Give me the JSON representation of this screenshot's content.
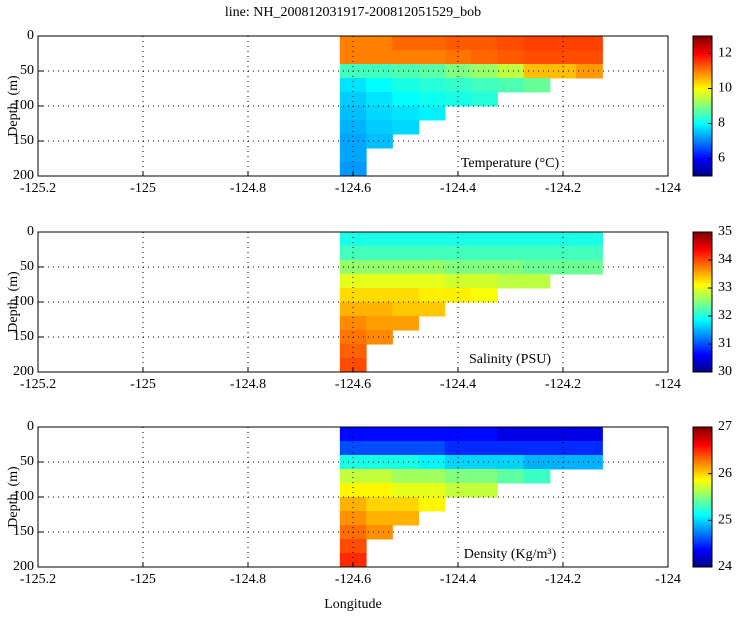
{
  "chart_data": [
    {
      "type": "heatmap",
      "title": "line: NH_200812031917-200812051529_bob",
      "ylabel": "Depth, (m)",
      "label": "Temperature (°C)",
      "x": [
        -124.6,
        -124.55,
        -124.5,
        -124.45,
        -124.4,
        -124.35,
        -124.3,
        -124.25,
        -124.2,
        -124.15
      ],
      "y": [
        10,
        30,
        50,
        70,
        90,
        110,
        130,
        150,
        170,
        190
      ],
      "values": [
        [
          11,
          11,
          11.2,
          11.2,
          11.3,
          11.3,
          11.4,
          11.5,
          11.5,
          11.5
        ],
        [
          11,
          11,
          11,
          11,
          11.1,
          11.2,
          11.3,
          11.4,
          11.4,
          11.4
        ],
        [
          8.5,
          8.5,
          8.6,
          8.7,
          9,
          9.2,
          9.5,
          10.5,
          10.5,
          10.8
        ],
        [
          7.8,
          8,
          8.2,
          8.3,
          8.4,
          8.5,
          8.6,
          8.8,
          null,
          null
        ],
        [
          7.6,
          7.8,
          8,
          8.1,
          8.2,
          8.3,
          null,
          null,
          null,
          null
        ],
        [
          7.5,
          7.7,
          7.8,
          7.9,
          null,
          null,
          null,
          null,
          null,
          null
        ],
        [
          7.4,
          7.6,
          7.7,
          null,
          null,
          null,
          null,
          null,
          null,
          null
        ],
        [
          7.3,
          7.5,
          null,
          null,
          null,
          null,
          null,
          null,
          null,
          null
        ],
        [
          7.3,
          null,
          null,
          null,
          null,
          null,
          null,
          null,
          null,
          null
        ],
        [
          7.2,
          null,
          null,
          null,
          null,
          null,
          null,
          null,
          null,
          null
        ]
      ],
      "xlim": [
        -125.2,
        -124
      ],
      "xticks": [
        -125.2,
        -125,
        -124.8,
        -124.6,
        -124.4,
        -124.2,
        -124
      ],
      "ylim": [
        0,
        200
      ],
      "yticks": [
        0,
        50,
        100,
        150,
        200
      ],
      "y_inverted": true,
      "grid": true,
      "colormap": "jet",
      "zlim": [
        5,
        13
      ],
      "zticks": [
        6,
        8,
        10,
        12
      ]
    },
    {
      "type": "heatmap",
      "ylabel": "Depth, (m)",
      "label": "Salinity (PSU)",
      "x": [
        -124.6,
        -124.55,
        -124.5,
        -124.45,
        -124.4,
        -124.35,
        -124.3,
        -124.25,
        -124.2,
        -124.15
      ],
      "y": [
        10,
        30,
        50,
        70,
        90,
        110,
        130,
        150,
        170,
        190
      ],
      "values": [
        [
          32,
          32,
          32,
          32,
          32,
          32,
          32,
          32,
          32,
          32
        ],
        [
          32.2,
          32.2,
          32.2,
          32.2,
          32.2,
          32.2,
          32.2,
          32.2,
          32.2,
          32.2
        ],
        [
          32.6,
          32.6,
          32.6,
          32.6,
          32.5,
          32.5,
          32.5,
          32.4,
          32.4,
          32.4
        ],
        [
          33,
          33,
          33,
          33,
          32.9,
          32.9,
          32.8,
          32.8,
          null,
          null
        ],
        [
          33.3,
          33.3,
          33.3,
          33.2,
          33.2,
          33.1,
          null,
          null,
          null,
          null
        ],
        [
          33.5,
          33.5,
          33.4,
          33.4,
          null,
          null,
          null,
          null,
          null,
          null
        ],
        [
          33.7,
          33.6,
          33.6,
          null,
          null,
          null,
          null,
          null,
          null,
          null
        ],
        [
          33.8,
          33.7,
          null,
          null,
          null,
          null,
          null,
          null,
          null,
          null
        ],
        [
          33.9,
          null,
          null,
          null,
          null,
          null,
          null,
          null,
          null,
          null
        ],
        [
          34,
          null,
          null,
          null,
          null,
          null,
          null,
          null,
          null,
          null
        ]
      ],
      "xlim": [
        -125.2,
        -124
      ],
      "xticks": [
        -125.2,
        -125,
        -124.8,
        -124.6,
        -124.4,
        -124.2,
        -124
      ],
      "ylim": [
        0,
        200
      ],
      "yticks": [
        0,
        50,
        100,
        150,
        200
      ],
      "y_inverted": true,
      "grid": true,
      "colormap": "jet",
      "zlim": [
        30,
        35
      ],
      "zticks": [
        30,
        31,
        32,
        33,
        34,
        35
      ]
    },
    {
      "type": "heatmap",
      "ylabel": "Depth, (m)",
      "xlabel": "Longitude",
      "label": "Density (Kg/m³)",
      "x": [
        -124.6,
        -124.55,
        -124.5,
        -124.45,
        -124.4,
        -124.35,
        -124.3,
        -124.25,
        -124.2,
        -124.15
      ],
      "y": [
        10,
        30,
        50,
        70,
        90,
        110,
        130,
        150,
        170,
        190
      ],
      "values": [
        [
          24.4,
          24.4,
          24.4,
          24.4,
          24.4,
          24.4,
          24.3,
          24.3,
          24.3,
          24.3
        ],
        [
          24.6,
          24.6,
          24.6,
          24.6,
          24.5,
          24.5,
          24.5,
          24.5,
          24.5,
          24.5
        ],
        [
          25.2,
          25.2,
          25.2,
          25.1,
          25,
          25,
          25,
          24.9,
          24.9,
          24.9
        ],
        [
          25.7,
          25.7,
          25.6,
          25.6,
          25.5,
          25.5,
          25.4,
          25.3,
          null,
          null
        ],
        [
          25.9,
          25.9,
          25.8,
          25.8,
          25.7,
          25.7,
          null,
          null,
          null,
          null
        ],
        [
          26.1,
          26,
          26,
          25.9,
          null,
          null,
          null,
          null,
          null,
          null
        ],
        [
          26.2,
          26.1,
          26.1,
          null,
          null,
          null,
          null,
          null,
          null,
          null
        ],
        [
          26.3,
          26.2,
          null,
          null,
          null,
          null,
          null,
          null,
          null,
          null
        ],
        [
          26.4,
          null,
          null,
          null,
          null,
          null,
          null,
          null,
          null,
          null
        ],
        [
          26.5,
          null,
          null,
          null,
          null,
          null,
          null,
          null,
          null,
          null
        ]
      ],
      "xlim": [
        -125.2,
        -124
      ],
      "xticks": [
        -125.2,
        -125,
        -124.8,
        -124.6,
        -124.4,
        -124.2,
        -124
      ],
      "ylim": [
        0,
        200
      ],
      "yticks": [
        0,
        50,
        100,
        150,
        200
      ],
      "y_inverted": true,
      "grid": true,
      "colormap": "jet",
      "zlim": [
        24,
        27
      ],
      "zticks": [
        24,
        25,
        26,
        27
      ]
    }
  ]
}
